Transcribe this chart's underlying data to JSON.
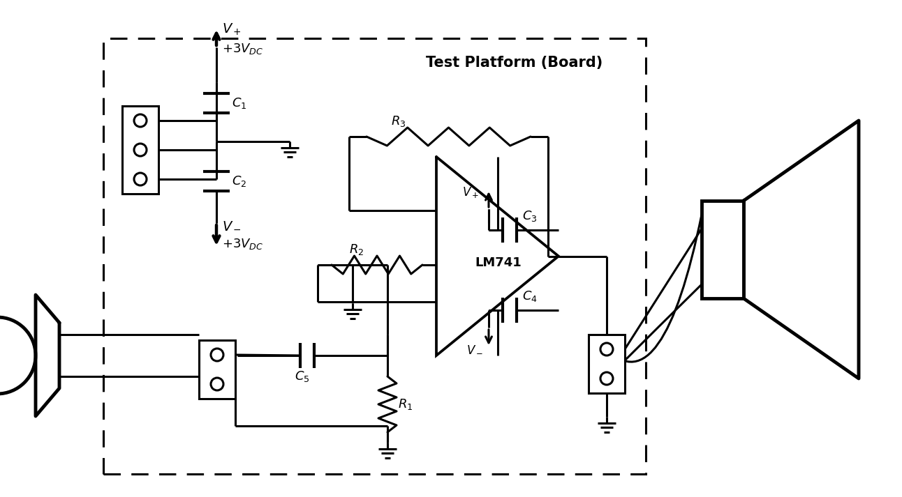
{
  "bg_color": "#ffffff",
  "line_color": "#000000",
  "lw": 2.2,
  "lw_thick": 3.5,
  "fig_width": 12.92,
  "fig_height": 7.13,
  "dpi": 100,
  "board_label": "Test Platform (Board)",
  "opamp_label": "LM741"
}
